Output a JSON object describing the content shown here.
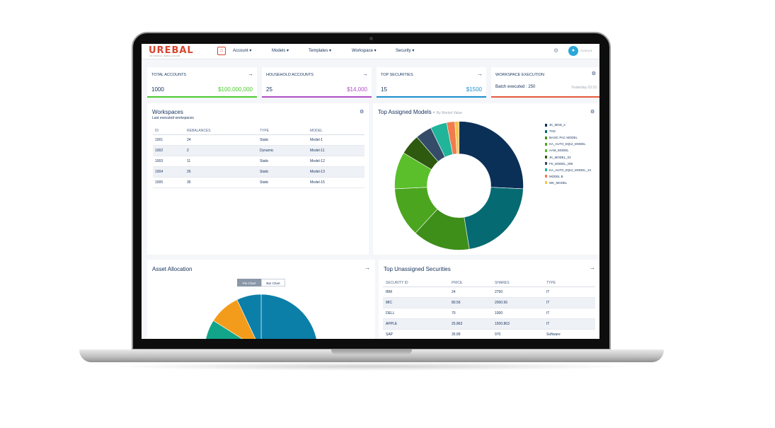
{
  "app": {
    "logo": "UREBAL",
    "logo_subtitle": "UNIVERSAL REBALANCER",
    "user": "SUSHA"
  },
  "nav": {
    "items": [
      "Account ▾",
      "Models ▾",
      "Templates ▾",
      "Workspace ▾",
      "Security ▾"
    ]
  },
  "stats": [
    {
      "title": "TOTAL ACCOUNTS",
      "count": "1000",
      "value": "$100,000,000",
      "color": "#4bca2f"
    },
    {
      "title": "HOUSEHOLD ACCOUNTS",
      "count": "25",
      "value": "$14,000",
      "color": "#b04ec6"
    },
    {
      "title": "TOP SECURITIES",
      "count": "15",
      "value": "$1500",
      "color": "#1b8ed0"
    },
    {
      "title": "WORKSPACE EXECUTION",
      "count": "Batch executed : 250",
      "value": "Yesterday 03:33",
      "color": "#e8593e"
    }
  ],
  "workspaces": {
    "title": "Workspaces",
    "subtitle": "Last executed workspaces",
    "columns": [
      "ID",
      "REBALANCES",
      "TYPE",
      "MODEL"
    ],
    "rows": [
      [
        "1001",
        "24",
        "Static",
        "Model-1"
      ],
      [
        "1002",
        "2",
        "Dynamic",
        "Model-11"
      ],
      [
        "1003",
        "11",
        "Static",
        "Model-12"
      ],
      [
        "1004",
        "26",
        "Static",
        "Model-13"
      ],
      [
        "1005",
        "35",
        "Static",
        "Model-15"
      ]
    ]
  },
  "top_models": {
    "title": "Top Assigned Models -",
    "subtitle": "By Market Value",
    "legend": [
      "JK_MOD_2",
      "TXD",
      "BASIC PAC MODEL",
      "KA_AUTO_EQUI_MODEL",
      "AAM_MODEL",
      "JK_MODEL_03",
      "FK_MODEL_005",
      "KA_AUTO_EQUI_MODEL_24",
      "MODEL B",
      "WK_MODEL"
    ]
  },
  "asset_allocation": {
    "title": "Asset Allocation",
    "toggle_pie": "Pie Chart",
    "toggle_bar": "Bar Chart"
  },
  "unassigned": {
    "title": "Top Unassigned Securities",
    "columns": [
      "SECURITY ID",
      "PRICE",
      "SHARES",
      "TYPE"
    ],
    "rows": [
      [
        "IBM",
        "24",
        "2750",
        "IT"
      ],
      [
        "MIC",
        "80.56",
        "2000.56",
        "IT"
      ],
      [
        "DELL",
        "70",
        "1000",
        "IT"
      ],
      [
        "APPLE",
        "25.863",
        "1500.863",
        "IT"
      ],
      [
        "SAP",
        "35.89",
        "970",
        "Software"
      ]
    ]
  },
  "chart_data": [
    {
      "type": "pie",
      "title": "Top Assigned Models - By Market Value",
      "categories": [
        "JK_MOD_2",
        "TXD",
        "BASIC PAC MODEL",
        "KA_AUTO_EQUI_MODEL",
        "AAM_MODEL",
        "JK_MODEL_03",
        "FK_MODEL_005",
        "KA_AUTO_EQUI_MODEL_24",
        "MODEL B",
        "WK_MODEL"
      ],
      "values": [
        25,
        21,
        14,
        12,
        9,
        5,
        4,
        4,
        2,
        1
      ],
      "colors": [
        "#0b3058",
        "#066a72",
        "#3e8e1a",
        "#4ca51e",
        "#5abf2a",
        "#2d5a0e",
        "#344c68",
        "#20b49a",
        "#f07b4e",
        "#f3c64b"
      ]
    },
    {
      "type": "pie",
      "title": "Asset Allocation",
      "values": [
        42,
        21,
        21,
        9,
        7
      ],
      "colors": [
        "#0b7fa8",
        "#17b3c1",
        "#12a58a",
        "#f39c1b",
        "#0b7fa8"
      ]
    }
  ]
}
